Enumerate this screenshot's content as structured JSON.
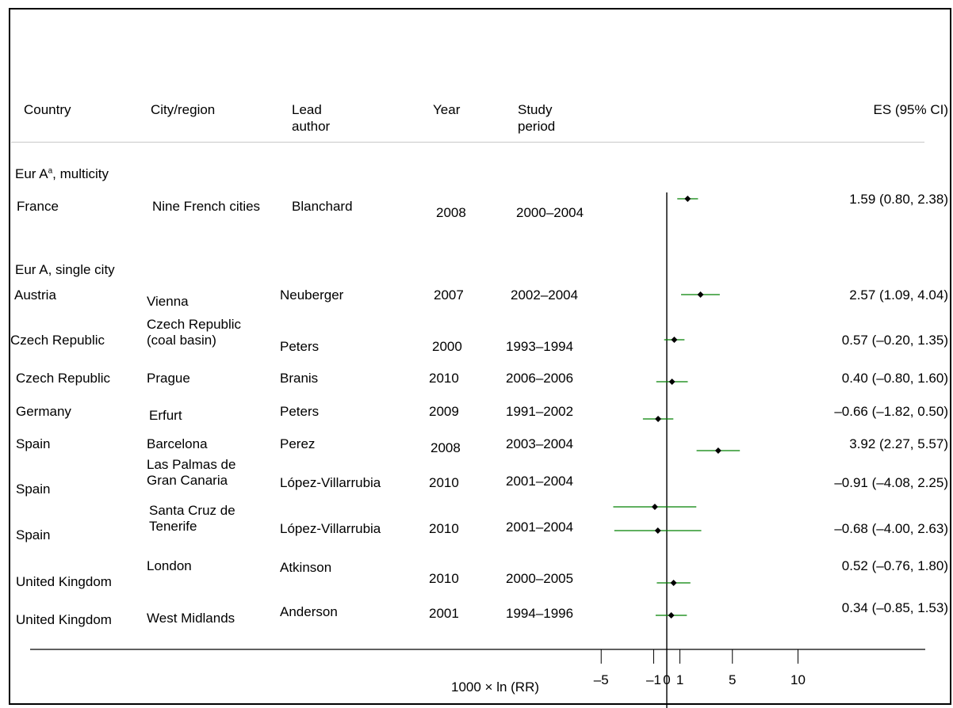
{
  "headers": {
    "country": "Country",
    "city": "City/region",
    "author": [
      "Lead",
      "author"
    ],
    "year": "Year",
    "period": [
      "Study",
      "period"
    ],
    "es": "ES (95% CI)"
  },
  "groups": {
    "multicity": {
      "label": "Eur A",
      "sup": "a",
      "rest": ", multicity"
    },
    "single": {
      "label": "Eur A, single city"
    }
  },
  "rows": [
    {
      "country": "France",
      "city": [
        "Nine French cities"
      ],
      "author": "Blanchard",
      "year": "2008",
      "period": "2000–2004",
      "ci": "1.59 (0.80, 2.38)"
    },
    {
      "country": "Austria",
      "city": [
        "Vienna"
      ],
      "author": "Neuberger",
      "year": "2007",
      "period": "2002–2004",
      "ci": "2.57 (1.09, 4.04)"
    },
    {
      "country": "Czech Republic",
      "city": [
        "Czech Republic",
        "(coal basin)"
      ],
      "author": "Peters",
      "year": "2000",
      "period": "1993–1994",
      "ci": "0.57 (–0.20, 1.35)"
    },
    {
      "country": "Czech Republic",
      "city": [
        "Prague"
      ],
      "author": "Branis",
      "year": "2010",
      "period": "2006–2006",
      "ci": "0.40 (–0.80, 1.60)"
    },
    {
      "country": "Germany",
      "city": [
        "Erfurt"
      ],
      "author": "Peters",
      "year": "2009",
      "period": "1991–2002",
      "ci": "–0.66 (–1.82, 0.50)"
    },
    {
      "country": "Spain",
      "city": [
        "Barcelona"
      ],
      "author": "Perez",
      "year": "2008",
      "period": "2003–2004",
      "ci": "3.92 (2.27, 5.57)"
    },
    {
      "country": "Spain",
      "city": [
        "Las Palmas de",
        "Gran Canaria"
      ],
      "author": "López-Villarrubia",
      "year": "2010",
      "period": "2001–2004",
      "ci": "–0.91 (–4.08, 2.25)"
    },
    {
      "country": "Spain",
      "city": [
        "Santa Cruz de",
        "Tenerife"
      ],
      "author": "López-Villarrubia",
      "year": "2010",
      "period": "2001–2004",
      "ci": "–0.68 (–4.00, 2.63)"
    },
    {
      "country": "United Kingdom",
      "city": [
        "London"
      ],
      "author": "Atkinson",
      "year": "2010",
      "period": "2000–2005",
      "ci": "0.52 (–0.76, 1.80)"
    },
    {
      "country": "United Kingdom",
      "city": [
        "West Midlands"
      ],
      "author": "Anderson",
      "year": "2001",
      "period": "1994–1996",
      "ci": "0.34 (–0.85, 1.53)"
    }
  ],
  "colors": {
    "ci_line": "#008000",
    "point": "#000000",
    "axis": "#000000",
    "header_rule": "#c8c8c8"
  },
  "chart_data": {
    "type": "scatter",
    "subtype": "forest-plot",
    "xlabel": "1000 × ln (RR)",
    "xticks": [
      -5,
      -1,
      0,
      1,
      5,
      10
    ],
    "xtick_labels": [
      "–5",
      "–1",
      "0",
      "1",
      "5",
      "10"
    ],
    "reference_line": 0,
    "studies": [
      {
        "label": "France – Nine French cities",
        "es": 1.59,
        "lo": 0.8,
        "hi": 2.38
      },
      {
        "label": "Austria – Vienna",
        "es": 2.57,
        "lo": 1.09,
        "hi": 4.04
      },
      {
        "label": "Czech Republic – Czech Republic (coal basin)",
        "es": 0.57,
        "lo": -0.2,
        "hi": 1.35
      },
      {
        "label": "Czech Republic – Prague",
        "es": 0.4,
        "lo": -0.8,
        "hi": 1.6
      },
      {
        "label": "Germany – Erfurt",
        "es": -0.66,
        "lo": -1.82,
        "hi": 0.5
      },
      {
        "label": "Spain – Barcelona",
        "es": 3.92,
        "lo": 2.27,
        "hi": 5.57
      },
      {
        "label": "Spain – Las Palmas de Gran Canaria",
        "es": -0.91,
        "lo": -4.08,
        "hi": 2.25
      },
      {
        "label": "Spain – Santa Cruz de Tenerife",
        "es": -0.68,
        "lo": -4.0,
        "hi": 2.63
      },
      {
        "label": "United Kingdom – London",
        "es": 0.52,
        "lo": -0.76,
        "hi": 1.8
      },
      {
        "label": "United Kingdom – West Midlands",
        "es": 0.34,
        "lo": -0.85,
        "hi": 1.53
      }
    ]
  }
}
